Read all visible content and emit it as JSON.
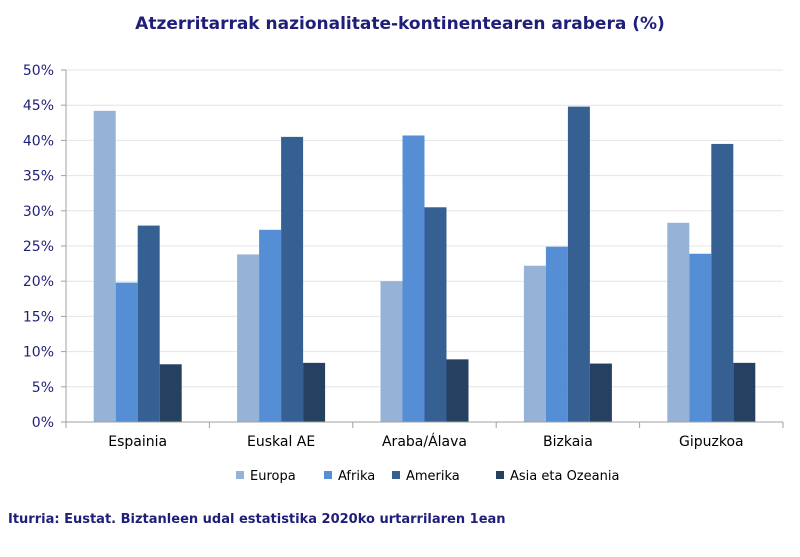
{
  "chart_data": {
    "type": "bar",
    "title": "Atzerritarrak nazionalitate-kontinentearen arabera (%)",
    "categories": [
      "Espainia",
      "Euskal AE",
      "Araba/Álava",
      "Bizkaia",
      "Gipuzkoa"
    ],
    "series": [
      {
        "name": "Europa",
        "color": "#95b3d7",
        "values": [
          44.2,
          23.8,
          20.0,
          22.2,
          28.3
        ]
      },
      {
        "name": "Afrika",
        "color": "#558ed5",
        "values": [
          19.8,
          27.3,
          40.7,
          24.9,
          23.9
        ]
      },
      {
        "name": "Amerika",
        "color": "#376092",
        "values": [
          27.9,
          40.5,
          30.5,
          44.8,
          39.5
        ]
      },
      {
        "name": "Asia eta Ozeania",
        "color": "#254061",
        "values": [
          8.2,
          8.4,
          8.9,
          8.3,
          8.4
        ]
      }
    ],
    "ylim": [
      0,
      50
    ],
    "y_ticks": [
      "0%",
      "5%",
      "10%",
      "15%",
      "20%",
      "25%",
      "30%",
      "35%",
      "40%",
      "45%",
      "50%"
    ],
    "y_tick_values": [
      0,
      5,
      10,
      15,
      20,
      25,
      30,
      35,
      40,
      45,
      50
    ],
    "xlabel": "",
    "ylabel": "",
    "grid": true,
    "legend_position": "bottom"
  },
  "source_note": "Iturria: Eustat. Biztanleen udal estatistika 2020ko urtarrilaren 1ean"
}
